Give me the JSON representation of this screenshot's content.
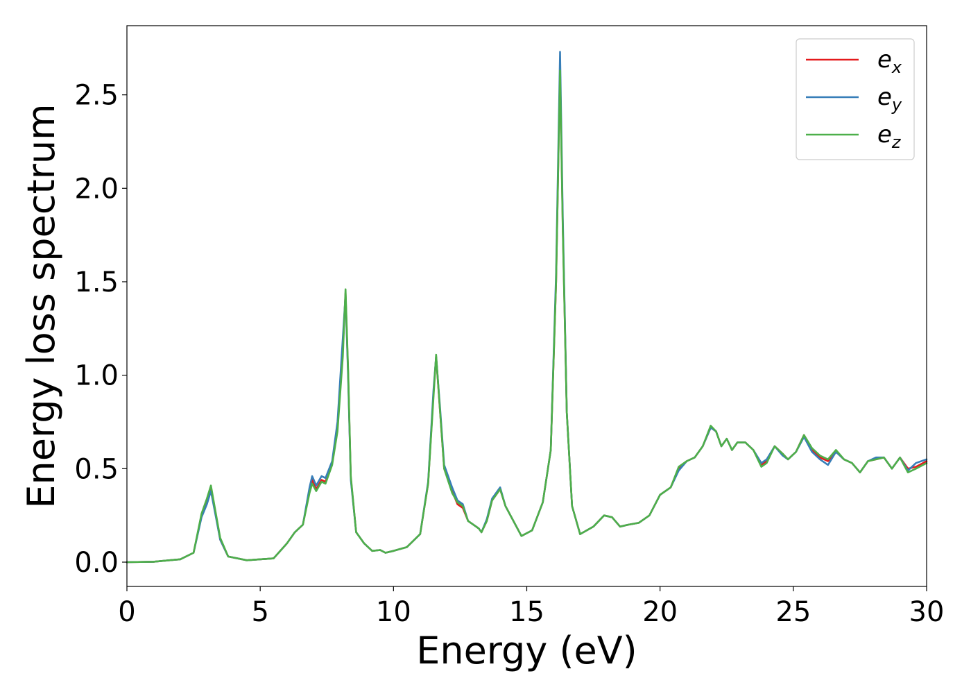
{
  "chart_data": {
    "type": "line",
    "title": "",
    "xlabel": "Energy (eV)",
    "ylabel": "Energy loss spectrum",
    "xlim": [
      0,
      30
    ],
    "ylim": [
      -0.13,
      2.87
    ],
    "xticks": [
      0,
      5,
      10,
      15,
      20,
      25,
      30
    ],
    "xtick_labels": [
      "0",
      "5",
      "10",
      "15",
      "20",
      "25",
      "30"
    ],
    "yticks": [
      0.0,
      0.5,
      1.0,
      1.5,
      2.0,
      2.5
    ],
    "ytick_labels": [
      "0.0",
      "0.5",
      "1.0",
      "1.5",
      "2.0",
      "2.5"
    ],
    "grid": false,
    "legend_position": "top-right",
    "series": [
      {
        "name": "e_x",
        "legend_main": "e",
        "legend_sub": "x",
        "color": "#e41a1c",
        "points": [
          [
            0,
            0
          ],
          [
            1,
            0.002
          ],
          [
            2,
            0.015
          ],
          [
            2.5,
            0.05
          ],
          [
            2.8,
            0.25
          ],
          [
            3.0,
            0.33
          ],
          [
            3.15,
            0.4
          ],
          [
            3.3,
            0.28
          ],
          [
            3.5,
            0.12
          ],
          [
            3.8,
            0.03
          ],
          [
            4.5,
            0.01
          ],
          [
            5.5,
            0.02
          ],
          [
            6.0,
            0.1
          ],
          [
            6.3,
            0.16
          ],
          [
            6.6,
            0.2
          ],
          [
            6.85,
            0.38
          ],
          [
            6.95,
            0.44
          ],
          [
            7.1,
            0.39
          ],
          [
            7.3,
            0.44
          ],
          [
            7.45,
            0.43
          ],
          [
            7.7,
            0.53
          ],
          [
            7.9,
            0.72
          ],
          [
            8.1,
            1.15
          ],
          [
            8.2,
            1.44
          ],
          [
            8.3,
            1.0
          ],
          [
            8.4,
            0.45
          ],
          [
            8.6,
            0.16
          ],
          [
            8.9,
            0.1
          ],
          [
            9.2,
            0.06
          ],
          [
            9.5,
            0.065
          ],
          [
            9.7,
            0.05
          ],
          [
            10.0,
            0.06
          ],
          [
            10.5,
            0.08
          ],
          [
            11.0,
            0.15
          ],
          [
            11.3,
            0.42
          ],
          [
            11.5,
            0.9
          ],
          [
            11.6,
            1.1
          ],
          [
            11.75,
            0.8
          ],
          [
            11.9,
            0.5
          ],
          [
            12.2,
            0.38
          ],
          [
            12.4,
            0.31
          ],
          [
            12.6,
            0.29
          ],
          [
            12.8,
            0.22
          ],
          [
            13.0,
            0.2
          ],
          [
            13.2,
            0.18
          ],
          [
            13.3,
            0.16
          ],
          [
            13.5,
            0.22
          ],
          [
            13.7,
            0.33
          ],
          [
            14.0,
            0.39
          ],
          [
            14.2,
            0.3
          ],
          [
            14.5,
            0.22
          ],
          [
            14.8,
            0.14
          ],
          [
            15.2,
            0.17
          ],
          [
            15.6,
            0.32
          ],
          [
            15.9,
            0.6
          ],
          [
            16.1,
            1.5
          ],
          [
            16.25,
            2.65
          ],
          [
            16.35,
            1.8
          ],
          [
            16.5,
            0.8
          ],
          [
            16.7,
            0.3
          ],
          [
            17.0,
            0.15
          ],
          [
            17.5,
            0.19
          ],
          [
            17.9,
            0.25
          ],
          [
            18.2,
            0.24
          ],
          [
            18.5,
            0.19
          ],
          [
            18.8,
            0.2
          ],
          [
            19.2,
            0.21
          ],
          [
            19.6,
            0.25
          ],
          [
            20.0,
            0.36
          ],
          [
            20.4,
            0.4
          ],
          [
            20.7,
            0.5
          ],
          [
            21.0,
            0.54
          ],
          [
            21.3,
            0.56
          ],
          [
            21.6,
            0.62
          ],
          [
            21.9,
            0.72
          ],
          [
            22.1,
            0.7
          ],
          [
            22.3,
            0.62
          ],
          [
            22.5,
            0.66
          ],
          [
            22.7,
            0.6
          ],
          [
            22.9,
            0.64
          ],
          [
            23.2,
            0.64
          ],
          [
            23.5,
            0.6
          ],
          [
            23.8,
            0.52
          ],
          [
            24.0,
            0.54
          ],
          [
            24.3,
            0.62
          ],
          [
            24.6,
            0.58
          ],
          [
            24.8,
            0.55
          ],
          [
            25.1,
            0.59
          ],
          [
            25.4,
            0.68
          ],
          [
            25.7,
            0.6
          ],
          [
            26.0,
            0.56
          ],
          [
            26.3,
            0.54
          ],
          [
            26.6,
            0.59
          ],
          [
            26.9,
            0.55
          ],
          [
            27.2,
            0.53
          ],
          [
            27.5,
            0.48
          ],
          [
            27.8,
            0.54
          ],
          [
            28.1,
            0.55
          ],
          [
            28.4,
            0.56
          ],
          [
            28.7,
            0.5
          ],
          [
            29.0,
            0.56
          ],
          [
            29.3,
            0.5
          ],
          [
            29.6,
            0.51
          ],
          [
            30.0,
            0.54
          ]
        ]
      },
      {
        "name": "e_y",
        "legend_main": "e",
        "legend_sub": "y",
        "color": "#377eb8",
        "points": [
          [
            0,
            0
          ],
          [
            1,
            0.002
          ],
          [
            2,
            0.015
          ],
          [
            2.5,
            0.05
          ],
          [
            2.8,
            0.24
          ],
          [
            3.0,
            0.31
          ],
          [
            3.15,
            0.38
          ],
          [
            3.3,
            0.27
          ],
          [
            3.5,
            0.12
          ],
          [
            3.8,
            0.03
          ],
          [
            4.5,
            0.01
          ],
          [
            5.5,
            0.02
          ],
          [
            6.0,
            0.1
          ],
          [
            6.3,
            0.16
          ],
          [
            6.6,
            0.2
          ],
          [
            6.85,
            0.4
          ],
          [
            6.95,
            0.46
          ],
          [
            7.1,
            0.41
          ],
          [
            7.3,
            0.46
          ],
          [
            7.45,
            0.45
          ],
          [
            7.7,
            0.54
          ],
          [
            7.9,
            0.75
          ],
          [
            8.1,
            1.2
          ],
          [
            8.2,
            1.43
          ],
          [
            8.3,
            0.98
          ],
          [
            8.4,
            0.44
          ],
          [
            8.6,
            0.16
          ],
          [
            8.9,
            0.1
          ],
          [
            9.2,
            0.06
          ],
          [
            9.5,
            0.065
          ],
          [
            9.7,
            0.05
          ],
          [
            10.0,
            0.06
          ],
          [
            10.5,
            0.08
          ],
          [
            11.0,
            0.15
          ],
          [
            11.3,
            0.43
          ],
          [
            11.5,
            0.92
          ],
          [
            11.6,
            1.1
          ],
          [
            11.75,
            0.82
          ],
          [
            11.9,
            0.52
          ],
          [
            12.2,
            0.4
          ],
          [
            12.4,
            0.33
          ],
          [
            12.6,
            0.31
          ],
          [
            12.8,
            0.22
          ],
          [
            13.0,
            0.2
          ],
          [
            13.2,
            0.18
          ],
          [
            13.3,
            0.16
          ],
          [
            13.5,
            0.23
          ],
          [
            13.7,
            0.34
          ],
          [
            14.0,
            0.4
          ],
          [
            14.2,
            0.3
          ],
          [
            14.5,
            0.22
          ],
          [
            14.8,
            0.14
          ],
          [
            15.2,
            0.17
          ],
          [
            15.6,
            0.32
          ],
          [
            15.9,
            0.6
          ],
          [
            16.1,
            1.55
          ],
          [
            16.25,
            2.73
          ],
          [
            16.35,
            1.85
          ],
          [
            16.5,
            0.8
          ],
          [
            16.7,
            0.3
          ],
          [
            17.0,
            0.15
          ],
          [
            17.5,
            0.19
          ],
          [
            17.9,
            0.25
          ],
          [
            18.2,
            0.24
          ],
          [
            18.5,
            0.19
          ],
          [
            18.8,
            0.2
          ],
          [
            19.2,
            0.21
          ],
          [
            19.6,
            0.25
          ],
          [
            20.0,
            0.36
          ],
          [
            20.4,
            0.4
          ],
          [
            20.7,
            0.49
          ],
          [
            21.0,
            0.54
          ],
          [
            21.3,
            0.56
          ],
          [
            21.6,
            0.62
          ],
          [
            21.9,
            0.72
          ],
          [
            22.1,
            0.7
          ],
          [
            22.3,
            0.62
          ],
          [
            22.5,
            0.66
          ],
          [
            22.7,
            0.6
          ],
          [
            22.9,
            0.64
          ],
          [
            23.2,
            0.64
          ],
          [
            23.5,
            0.6
          ],
          [
            23.8,
            0.53
          ],
          [
            24.0,
            0.55
          ],
          [
            24.3,
            0.62
          ],
          [
            24.6,
            0.57
          ],
          [
            24.8,
            0.55
          ],
          [
            25.1,
            0.59
          ],
          [
            25.4,
            0.67
          ],
          [
            25.7,
            0.59
          ],
          [
            26.0,
            0.55
          ],
          [
            26.3,
            0.52
          ],
          [
            26.6,
            0.59
          ],
          [
            26.9,
            0.55
          ],
          [
            27.2,
            0.53
          ],
          [
            27.5,
            0.48
          ],
          [
            27.8,
            0.54
          ],
          [
            28.1,
            0.56
          ],
          [
            28.4,
            0.56
          ],
          [
            28.7,
            0.5
          ],
          [
            29.0,
            0.56
          ],
          [
            29.3,
            0.49
          ],
          [
            29.6,
            0.53
          ],
          [
            30.0,
            0.55
          ]
        ]
      },
      {
        "name": "e_z",
        "legend_main": "e",
        "legend_sub": "z",
        "color": "#4daf4a",
        "points": [
          [
            0,
            0
          ],
          [
            1,
            0.002
          ],
          [
            2,
            0.015
          ],
          [
            2.5,
            0.05
          ],
          [
            2.8,
            0.26
          ],
          [
            3.0,
            0.34
          ],
          [
            3.15,
            0.41
          ],
          [
            3.3,
            0.29
          ],
          [
            3.5,
            0.13
          ],
          [
            3.8,
            0.03
          ],
          [
            4.5,
            0.01
          ],
          [
            5.5,
            0.02
          ],
          [
            6.0,
            0.1
          ],
          [
            6.3,
            0.16
          ],
          [
            6.6,
            0.2
          ],
          [
            6.85,
            0.37
          ],
          [
            6.95,
            0.42
          ],
          [
            7.1,
            0.38
          ],
          [
            7.3,
            0.43
          ],
          [
            7.45,
            0.42
          ],
          [
            7.7,
            0.52
          ],
          [
            7.9,
            0.7
          ],
          [
            8.1,
            1.1
          ],
          [
            8.2,
            1.46
          ],
          [
            8.3,
            1.02
          ],
          [
            8.4,
            0.46
          ],
          [
            8.6,
            0.16
          ],
          [
            8.9,
            0.1
          ],
          [
            9.2,
            0.06
          ],
          [
            9.5,
            0.065
          ],
          [
            9.7,
            0.05
          ],
          [
            10.0,
            0.06
          ],
          [
            10.5,
            0.08
          ],
          [
            11.0,
            0.15
          ],
          [
            11.3,
            0.42
          ],
          [
            11.5,
            0.88
          ],
          [
            11.6,
            1.11
          ],
          [
            11.75,
            0.8
          ],
          [
            11.9,
            0.5
          ],
          [
            12.2,
            0.37
          ],
          [
            12.4,
            0.32
          ],
          [
            12.6,
            0.3
          ],
          [
            12.8,
            0.22
          ],
          [
            13.0,
            0.2
          ],
          [
            13.2,
            0.18
          ],
          [
            13.3,
            0.16
          ],
          [
            13.5,
            0.22
          ],
          [
            13.7,
            0.33
          ],
          [
            14.0,
            0.39
          ],
          [
            14.2,
            0.3
          ],
          [
            14.5,
            0.22
          ],
          [
            14.8,
            0.14
          ],
          [
            15.2,
            0.17
          ],
          [
            15.6,
            0.32
          ],
          [
            15.9,
            0.6
          ],
          [
            16.1,
            1.5
          ],
          [
            16.25,
            2.63
          ],
          [
            16.35,
            1.78
          ],
          [
            16.5,
            0.8
          ],
          [
            16.7,
            0.3
          ],
          [
            17.0,
            0.15
          ],
          [
            17.5,
            0.19
          ],
          [
            17.9,
            0.25
          ],
          [
            18.2,
            0.24
          ],
          [
            18.5,
            0.19
          ],
          [
            18.8,
            0.2
          ],
          [
            19.2,
            0.21
          ],
          [
            19.6,
            0.25
          ],
          [
            20.0,
            0.36
          ],
          [
            20.4,
            0.4
          ],
          [
            20.7,
            0.51
          ],
          [
            21.0,
            0.54
          ],
          [
            21.3,
            0.56
          ],
          [
            21.6,
            0.62
          ],
          [
            21.9,
            0.73
          ],
          [
            22.1,
            0.7
          ],
          [
            22.3,
            0.62
          ],
          [
            22.5,
            0.66
          ],
          [
            22.7,
            0.6
          ],
          [
            22.9,
            0.64
          ],
          [
            23.2,
            0.64
          ],
          [
            23.5,
            0.6
          ],
          [
            23.8,
            0.51
          ],
          [
            24.0,
            0.53
          ],
          [
            24.3,
            0.62
          ],
          [
            24.6,
            0.58
          ],
          [
            24.8,
            0.55
          ],
          [
            25.1,
            0.59
          ],
          [
            25.4,
            0.68
          ],
          [
            25.7,
            0.61
          ],
          [
            26.0,
            0.57
          ],
          [
            26.3,
            0.55
          ],
          [
            26.6,
            0.6
          ],
          [
            26.9,
            0.55
          ],
          [
            27.2,
            0.53
          ],
          [
            27.5,
            0.48
          ],
          [
            27.8,
            0.54
          ],
          [
            28.1,
            0.55
          ],
          [
            28.4,
            0.56
          ],
          [
            28.7,
            0.5
          ],
          [
            29.0,
            0.56
          ],
          [
            29.3,
            0.48
          ],
          [
            29.6,
            0.5
          ],
          [
            30.0,
            0.53
          ]
        ]
      }
    ]
  }
}
